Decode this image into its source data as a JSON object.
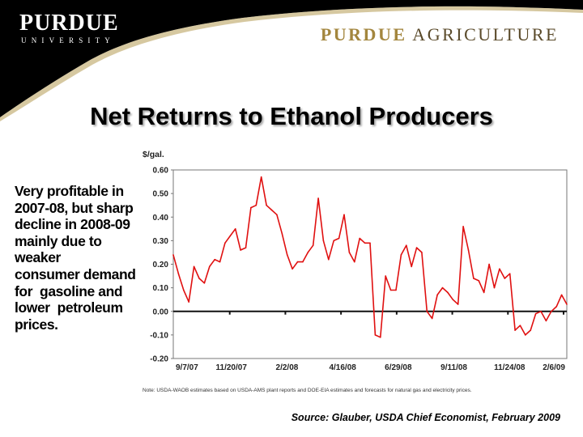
{
  "header": {
    "logo_wordmark": "PURDUE",
    "logo_sub": "UNIVERSITY",
    "college_first": "PURDUE",
    "college_rest": " AGRICULTURE"
  },
  "slide": {
    "title": "Net Returns to Ethanol Producers",
    "body_text": "Very profitable in\n2007-08, but sharp\ndecline in 2008-09\nmainly due to\nweaker\nconsumer demand\nfor  gasoline and\nlower  petroleum\nprices.",
    "source": "Source: Glauber, USDA Chief Economist, February 2009"
  },
  "colors": {
    "series": "#e01010",
    "header_band": "#000000",
    "ag_gold": "#a3863e"
  },
  "chart_data": {
    "type": "line",
    "title": "",
    "ylabel": "$/gal.",
    "xlabel": "",
    "ylim": [
      -0.2,
      0.6
    ],
    "yticks": [
      "0.60",
      "0.50",
      "0.40",
      "0.30",
      "0.20",
      "0.10",
      "0.00",
      "-0.10",
      "-0.20"
    ],
    "xticks": [
      "9/7/07",
      "11/20/07",
      "2/2/08",
      "4/16/08",
      "6/29/08",
      "9/11/08",
      "11/24/08",
      "2/6/09"
    ],
    "grid": false,
    "note": "Note:  USDA-WAOB estimates based on USDA-AMS plant reports and DOE-EIA estimates and forecasts for natural gas and electricity prices.",
    "series": [
      {
        "name": "",
        "values": [
          0.24,
          0.16,
          0.09,
          0.04,
          0.19,
          0.14,
          0.12,
          0.19,
          0.22,
          0.21,
          0.29,
          0.32,
          0.35,
          0.26,
          0.27,
          0.44,
          0.45,
          0.57,
          0.45,
          0.43,
          0.41,
          0.33,
          0.24,
          0.18,
          0.21,
          0.21,
          0.25,
          0.28,
          0.48,
          0.3,
          0.22,
          0.3,
          0.31,
          0.41,
          0.25,
          0.21,
          0.31,
          0.29,
          0.29,
          -0.1,
          -0.11,
          0.15,
          0.09,
          0.09,
          0.24,
          0.28,
          0.19,
          0.27,
          0.25,
          0.0,
          -0.03,
          0.07,
          0.1,
          0.08,
          0.05,
          0.03,
          0.36,
          0.26,
          0.14,
          0.13,
          0.08,
          0.2,
          0.1,
          0.18,
          0.14,
          0.16,
          -0.08,
          -0.06,
          -0.1,
          -0.08,
          -0.01,
          0.0,
          -0.04,
          0.0,
          0.02,
          0.07,
          0.03
        ]
      }
    ]
  }
}
